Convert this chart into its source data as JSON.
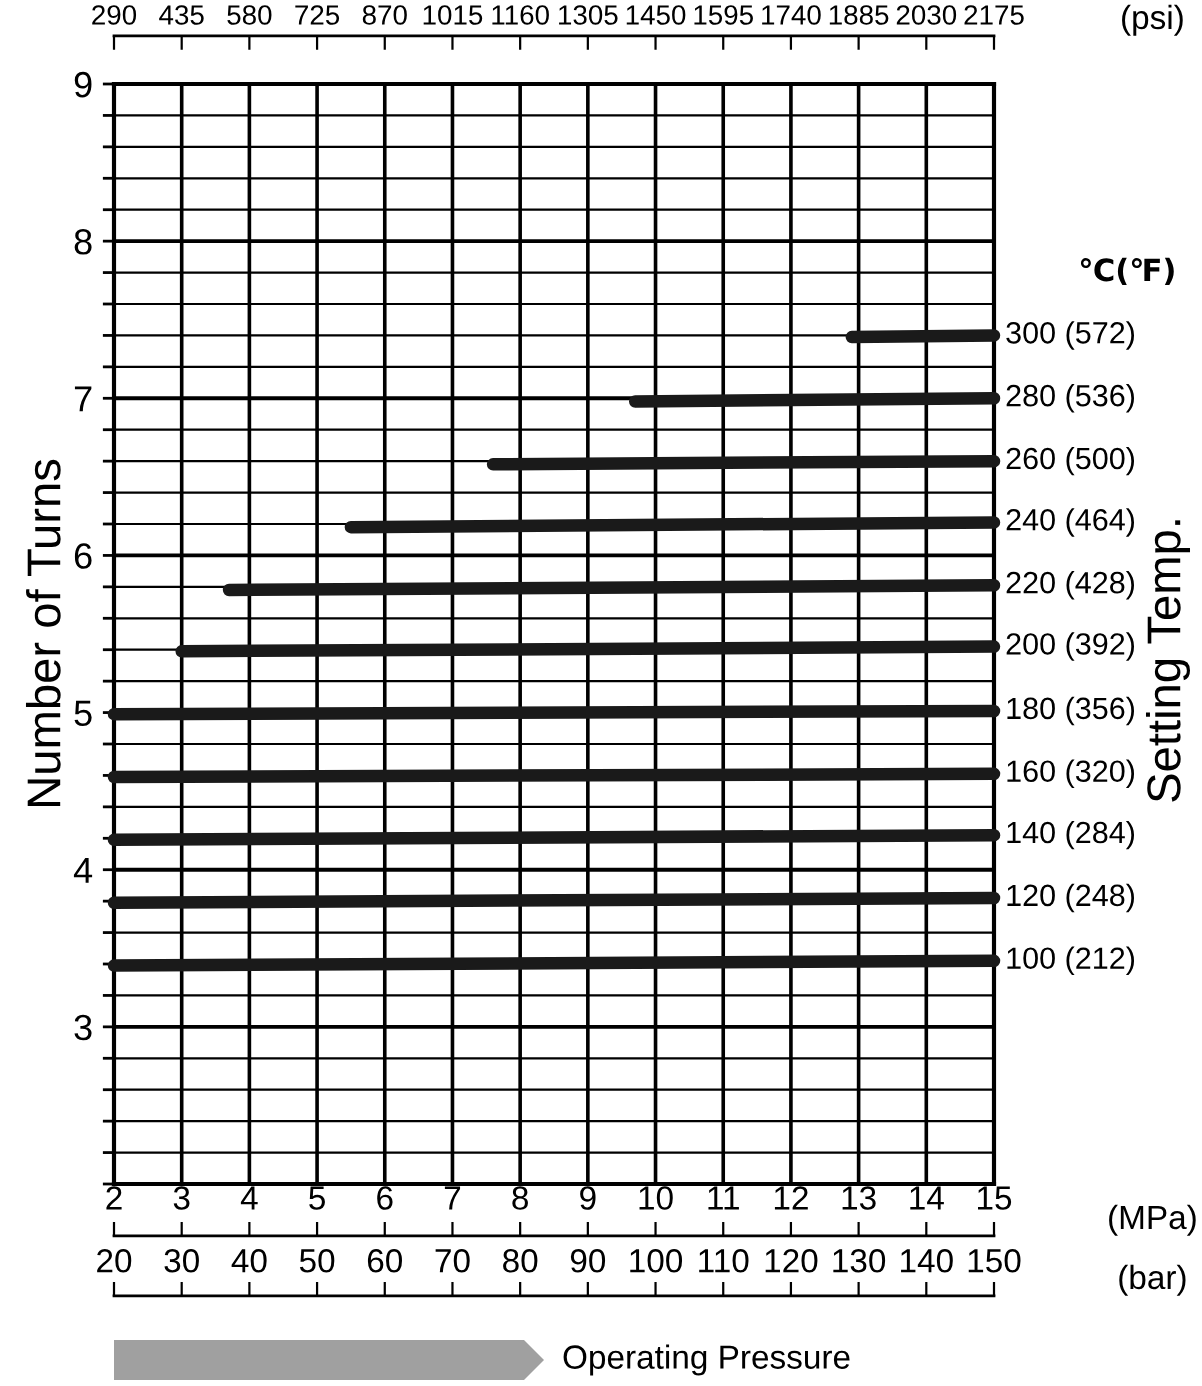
{
  "chart_data": {
    "type": "line",
    "ylabel": "Number of Turns",
    "y2label": "Setting Temp.",
    "xlabel": "(MPa)",
    "x2label": "(psi)",
    "legend_title": "℃(℉)",
    "xlim": [
      2,
      15
    ],
    "xticks": [
      2,
      3,
      4,
      5,
      6,
      7,
      8,
      9,
      10,
      11,
      12,
      13,
      14,
      15
    ],
    "x2lim": [
      290,
      2175
    ],
    "x2ticks": [
      290,
      435,
      580,
      725,
      870,
      1015,
      1160,
      1305,
      1450,
      1595,
      1740,
      1885,
      2030,
      2175
    ],
    "ylim": [
      2,
      9
    ],
    "yticks": [
      {
        "value": 2,
        "label": null
      },
      {
        "value": 2.2,
        "label": null
      },
      {
        "value": 2.4,
        "label": null
      },
      {
        "value": 2.6,
        "label": null
      },
      {
        "value": 2.8,
        "label": null
      },
      3,
      {
        "value": 3.2,
        "label": null
      },
      {
        "value": 3.4,
        "label": null
      },
      {
        "value": 3.6,
        "label": null
      },
      {
        "value": 3.8,
        "label": null
      },
      4,
      {
        "value": 4.2,
        "label": null
      },
      {
        "value": 4.4,
        "label": null
      },
      {
        "value": 4.6,
        "label": null
      },
      {
        "value": 4.8,
        "label": null
      },
      5,
      {
        "value": 5.2,
        "label": null
      },
      {
        "value": 5.4,
        "label": null
      },
      {
        "value": 5.6,
        "label": null
      },
      {
        "value": 5.8,
        "label": null
      },
      6,
      {
        "value": 6.2,
        "label": null
      },
      {
        "value": 6.4,
        "label": null
      },
      {
        "value": 6.6,
        "label": null
      },
      {
        "value": 6.8,
        "label": null
      },
      7,
      {
        "value": 7.2,
        "label": null
      },
      {
        "value": 7.4,
        "label": null
      },
      {
        "value": 7.6,
        "label": null
      },
      {
        "value": 7.8,
        "label": null
      },
      8,
      {
        "value": 8.2,
        "label": null
      },
      {
        "value": 8.4,
        "label": null
      },
      {
        "value": 8.6,
        "label": null
      },
      {
        "value": 8.8,
        "label": null
      },
      9
    ],
    "grid": true,
    "marker": "none",
    "line_style": "solid",
    "series": [
      {
        "name": "100 (212)",
        "color": "#1a1a1a",
        "x": [
          2,
          15
        ],
        "values": [
          3.39,
          3.42
        ]
      },
      {
        "name": "120 (248)",
        "color": "#1a1a1a",
        "x": [
          2,
          15
        ],
        "values": [
          3.79,
          3.82
        ]
      },
      {
        "name": "140 (284)",
        "color": "#1a1a1a",
        "x": [
          2,
          15
        ],
        "values": [
          4.19,
          4.22
        ]
      },
      {
        "name": "160 (320)",
        "color": "#1a1a1a",
        "x": [
          2,
          15
        ],
        "values": [
          4.59,
          4.61
        ]
      },
      {
        "name": "180 (356)",
        "color": "#1a1a1a",
        "x": [
          2,
          15
        ],
        "values": [
          4.99,
          5.01
        ]
      },
      {
        "name": "200 (392)",
        "color": "#1a1a1a",
        "x": [
          3.0,
          15
        ],
        "values": [
          5.39,
          5.42
        ]
      },
      {
        "name": "220 (428)",
        "color": "#1a1a1a",
        "x": [
          3.7,
          15
        ],
        "values": [
          5.78,
          5.81
        ]
      },
      {
        "name": "240 (464)",
        "color": "#1a1a1a",
        "x": [
          5.5,
          15
        ],
        "values": [
          6.18,
          6.21
        ]
      },
      {
        "name": "260 (500)",
        "color": "#1a1a1a",
        "x": [
          7.6,
          15
        ],
        "values": [
          6.58,
          6.6
        ]
      },
      {
        "name": "280 (536)",
        "color": "#1a1a1a",
        "x": [
          9.7,
          15
        ],
        "values": [
          6.98,
          7.0
        ]
      },
      {
        "name": "300 (572)",
        "color": "#1a1a1a",
        "x": [
          12.9,
          15
        ],
        "values": [
          7.39,
          7.4
        ]
      }
    ],
    "annotations": [
      "Operating Pressure",
      "(bar)",
      "20",
      "30",
      "40",
      "50",
      "60",
      "70",
      "80",
      "90",
      "100",
      "110",
      "120",
      "130",
      "140",
      "150"
    ]
  }
}
